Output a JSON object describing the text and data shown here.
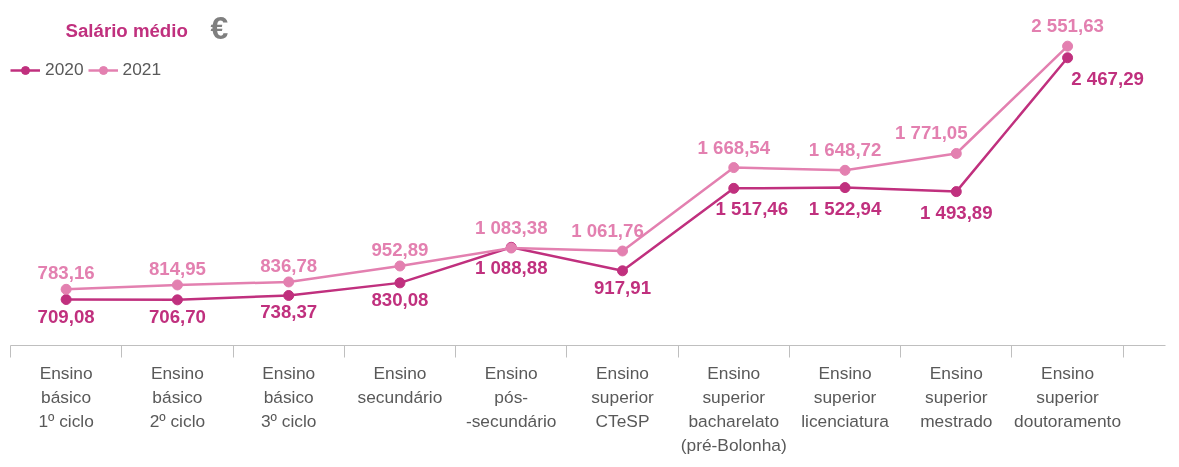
{
  "chart_data": {
    "type": "line",
    "title": "Salário médio",
    "annotations": [
      "€"
    ],
    "categories": [
      "Ensino\nbásico\n1º ciclo",
      "Ensino\nbásico\n2º ciclo",
      "Ensino\nbásico\n3º ciclo",
      "Ensino\nsecundário",
      "Ensino\npós-\n-secundário",
      "Ensino\nsuperior\nCTeSP",
      "Ensino\nsuperior\nbacharelato\n(pré-Bolonha)",
      "Ensino\nsuperior\nlicenciatura",
      "Ensino\nsuperior\nmestrado",
      "Ensino\nsuperior\ndoutoramento"
    ],
    "series": [
      {
        "name": "2020",
        "color": "#c0307e",
        "values": [
          709.08,
          706.7,
          738.37,
          830.08,
          1088.88,
          917.91,
          1517.46,
          1522.94,
          1493.89,
          2467.29
        ],
        "value_labels": [
          "709,08",
          "706,70",
          "738,37",
          "830,08",
          "1 088,88",
          "917,91",
          "1 517,46",
          "1 522,94",
          "1 493,89",
          "2 467,29"
        ]
      },
      {
        "name": "2021",
        "color": "#e380b0",
        "values": [
          783.16,
          814.95,
          836.78,
          952.89,
          1083.38,
          1061.76,
          1668.54,
          1648.72,
          1771.05,
          2551.63
        ],
        "value_labels": [
          "783,16",
          "814,95",
          "836,78",
          "952,89",
          "1 083,38",
          "1 061,76",
          "1 668,54",
          "1 648,72",
          "1 771,05",
          "2 551,63"
        ]
      }
    ],
    "tick_labels": "x",
    "grid": false,
    "legend": "top left",
    "marker": "circle",
    "line_style": "solid"
  }
}
